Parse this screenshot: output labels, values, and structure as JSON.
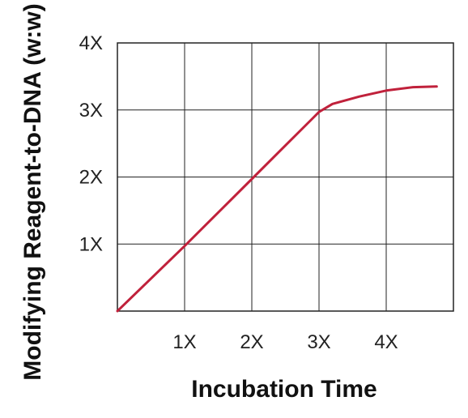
{
  "chart_data": {
    "type": "line",
    "xlabel": "Incubation Time",
    "ylabel": "Modifying Reagent-to-DNA (w:w)",
    "xlim": [
      0,
      5
    ],
    "ylim": [
      0,
      4
    ],
    "x_ticks": [
      1,
      2,
      3,
      4
    ],
    "x_tick_labels": [
      "1X",
      "2X",
      "3X",
      "4X"
    ],
    "y_ticks": [
      1,
      2,
      3,
      4
    ],
    "y_tick_labels": [
      "1X",
      "2X",
      "3X",
      "4X"
    ],
    "grid": true,
    "series": [
      {
        "color": "#c0213b",
        "x": [
          0,
          1,
          2,
          2.5,
          2.9,
          3.0,
          3.2,
          3.6,
          4.0,
          4.4,
          4.75
        ],
        "y": [
          0,
          0.97,
          1.97,
          2.47,
          2.87,
          2.97,
          3.09,
          3.2,
          3.29,
          3.34,
          3.35
        ]
      }
    ]
  }
}
